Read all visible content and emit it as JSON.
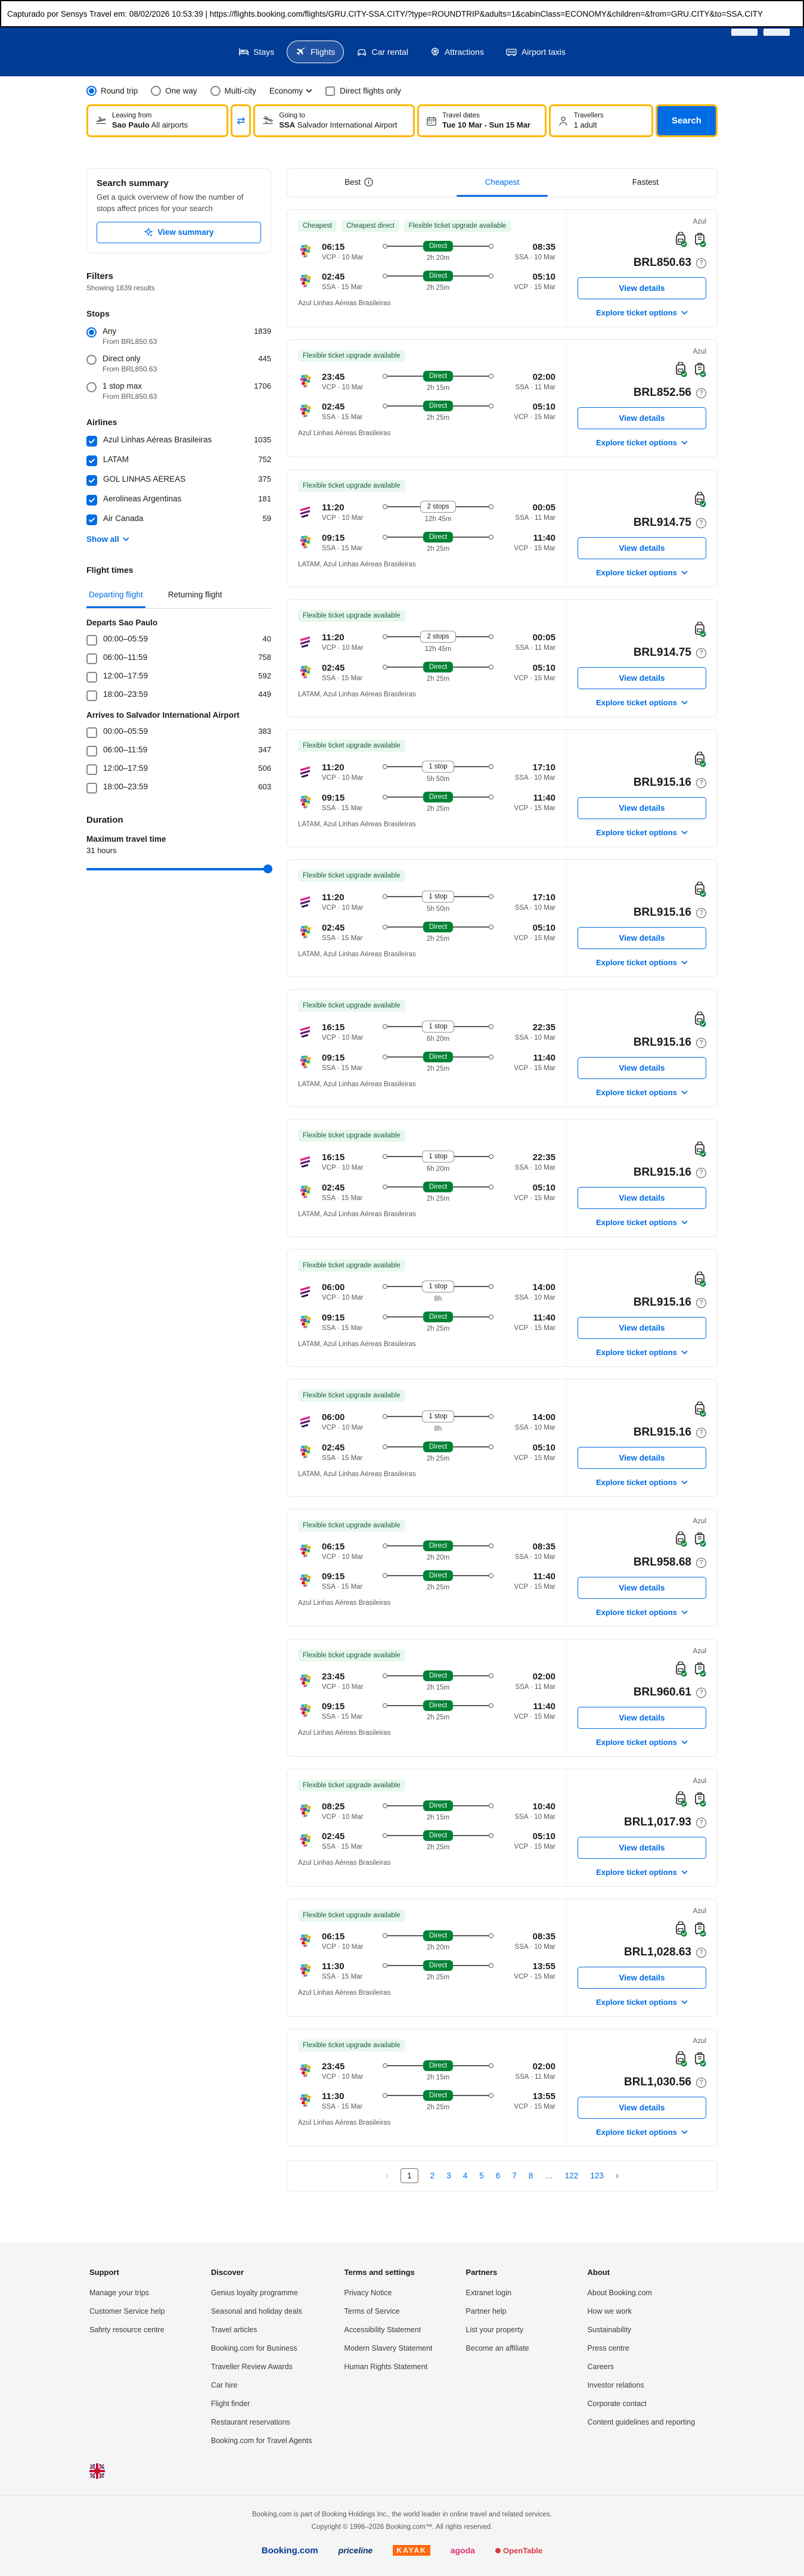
{
  "capture_bar": {
    "text": "Capturado por Sensys Travel em: 08/02/2026 10:53:39  |  https://flights.booking.com/flights/GRU.CITY-SSA.CITY/?type=ROUNDTRIP&adults=1&cabinClass=ECONOMY&children=&from=GRU.CITY&to=SSA.CITY"
  },
  "header": {
    "nav": [
      {
        "label": "Stays",
        "icon": "bed-icon",
        "active": false
      },
      {
        "label": "Flights",
        "icon": "plane-icon",
        "active": true
      },
      {
        "label": "Car rental",
        "icon": "car-icon",
        "active": false
      },
      {
        "label": "Attractions",
        "icon": "attractions-icon",
        "active": false
      },
      {
        "label": "Airport taxis",
        "icon": "taxi-icon",
        "active": false
      }
    ]
  },
  "search_controls": {
    "trip_types": [
      {
        "label": "Round trip",
        "selected": true
      },
      {
        "label": "One way",
        "selected": false
      },
      {
        "label": "Multi-city",
        "selected": false
      }
    ],
    "cabin_class": "Economy",
    "direct_only_label": "Direct flights only"
  },
  "search_form": {
    "leaving_label": "Leaving from",
    "leaving_bold": "Sao Paulo",
    "leaving_rest": " All airports",
    "going_label": "Going to",
    "going_bold": "SSA",
    "going_rest": " Salvador International Airport",
    "dates_label": "Travel dates",
    "dates_value": "Tue 10 Mar - Sun 15 Mar",
    "travellers_label": "Travellers",
    "travellers_value": "1 adult",
    "search_label": "Search"
  },
  "sidebar": {
    "summary": {
      "title": "Search summary",
      "description": "Get a quick overview of how the number of stops affect prices for your search",
      "button": "View summary"
    },
    "filters_title": "Filters",
    "showing": "Showing 1839 results",
    "stops": {
      "title": "Stops",
      "options": [
        {
          "label": "Any",
          "sub": "From BRL850.63",
          "count": "1839",
          "selected": true
        },
        {
          "label": "Direct only",
          "sub": "From BRL850.63",
          "count": "445",
          "selected": false
        },
        {
          "label": "1 stop max",
          "sub": "From BRL850.63",
          "count": "1706",
          "selected": false
        }
      ]
    },
    "airlines": {
      "title": "Airlines",
      "items": [
        {
          "label": "Azul Linhas Aéreas Brasileiras",
          "count": "1035",
          "checked": true
        },
        {
          "label": "LATAM",
          "count": "752",
          "checked": true
        },
        {
          "label": "GOL LINHAS AEREAS",
          "count": "375",
          "checked": true
        },
        {
          "label": "Aerolineas Argentinas",
          "count": "181",
          "checked": true
        },
        {
          "label": "Air Canada",
          "count": "59",
          "checked": true
        }
      ],
      "show_all": "Show all"
    },
    "flight_times": {
      "title": "Flight times",
      "tabs": [
        {
          "label": "Departing flight",
          "active": true
        },
        {
          "label": "Returning flight",
          "active": false
        }
      ],
      "groups": [
        {
          "title": "Departs Sao Paulo",
          "rows": [
            {
              "label": "00:00–05:59",
              "count": "40"
            },
            {
              "label": "06:00–11:59",
              "count": "758"
            },
            {
              "label": "12:00–17:59",
              "count": "592"
            },
            {
              "label": "18:00–23:59",
              "count": "449"
            }
          ]
        },
        {
          "title": "Arrives to Salvador International Airport",
          "rows": [
            {
              "label": "00:00–05:59",
              "count": "383"
            },
            {
              "label": "06:00–11:59",
              "count": "347"
            },
            {
              "label": "12:00–17:59",
              "count": "506"
            },
            {
              "label": "18:00–23:59",
              "count": "603"
            }
          ]
        }
      ]
    },
    "duration": {
      "title": "Duration",
      "label": "Maximum travel time",
      "value": "31 hours"
    }
  },
  "results": {
    "tabs": [
      {
        "label": "Best",
        "info": true,
        "active": false
      },
      {
        "label": "Cheapest",
        "info": false,
        "active": true
      },
      {
        "label": "Fastest",
        "info": false,
        "active": false
      }
    ],
    "card_labels": {
      "view_details": "View details",
      "explore": "Explore ticket options"
    },
    "cards": [
      {
        "badges": [
          "Cheapest",
          "Cheapest direct",
          "Flexible ticket upgrade available"
        ],
        "provider": "Azul",
        "bags": 2,
        "price": "BRL850.63",
        "carriers": "Azul Linhas Aéreas Brasileiras",
        "legs": [
          {
            "logo": "azul",
            "dep_time": "06:15",
            "dep_sta": "VCP · 10 Mar",
            "stop": "Direct",
            "dur": "2h 20m",
            "arr_time": "08:35",
            "arr_sta": "SSA · 10 Mar"
          },
          {
            "logo": "azul",
            "dep_time": "02:45",
            "dep_sta": "SSA · 15 Mar",
            "stop": "Direct",
            "dur": "2h 25m",
            "arr_time": "05:10",
            "arr_sta": "VCP · 15 Mar"
          }
        ]
      },
      {
        "badges": [
          "Flexible ticket upgrade available"
        ],
        "provider": "Azul",
        "bags": 2,
        "price": "BRL852.56",
        "carriers": "Azul Linhas Aéreas Brasileiras",
        "legs": [
          {
            "logo": "azul",
            "dep_time": "23:45",
            "dep_sta": "VCP · 10 Mar",
            "stop": "Direct",
            "dur": "2h 15m",
            "arr_time": "02:00",
            "arr_sta": "SSA · 11 Mar"
          },
          {
            "logo": "azul",
            "dep_time": "02:45",
            "dep_sta": "SSA · 15 Mar",
            "stop": "Direct",
            "dur": "2h 25m",
            "arr_time": "05:10",
            "arr_sta": "VCP · 15 Mar"
          }
        ]
      },
      {
        "badges": [
          "Flexible ticket upgrade available"
        ],
        "provider": "",
        "bags": 1,
        "price": "BRL914.75",
        "carriers": "LATAM, Azul Linhas Aéreas Brasileiras",
        "legs": [
          {
            "logo": "latam",
            "dep_time": "11:20",
            "dep_sta": "VCP · 10 Mar",
            "stop": "2 stops",
            "dur": "12h 45m",
            "arr_time": "00:05",
            "arr_sta": "SSA · 11 Mar"
          },
          {
            "logo": "azul",
            "dep_time": "09:15",
            "dep_sta": "SSA · 15 Mar",
            "stop": "Direct",
            "dur": "2h 25m",
            "arr_time": "11:40",
            "arr_sta": "VCP · 15 Mar"
          }
        ]
      },
      {
        "badges": [
          "Flexible ticket upgrade available"
        ],
        "provider": "",
        "bags": 1,
        "price": "BRL914.75",
        "carriers": "LATAM, Azul Linhas Aéreas Brasileiras",
        "legs": [
          {
            "logo": "latam",
            "dep_time": "11:20",
            "dep_sta": "VCP · 10 Mar",
            "stop": "2 stops",
            "dur": "12h 45m",
            "arr_time": "00:05",
            "arr_sta": "SSA · 11 Mar"
          },
          {
            "logo": "azul",
            "dep_time": "02:45",
            "dep_sta": "SSA · 15 Mar",
            "stop": "Direct",
            "dur": "2h 25m",
            "arr_time": "05:10",
            "arr_sta": "VCP · 15 Mar"
          }
        ]
      },
      {
        "badges": [
          "Flexible ticket upgrade available"
        ],
        "provider": "",
        "bags": 1,
        "price": "BRL915.16",
        "carriers": "LATAM, Azul Linhas Aéreas Brasileiras",
        "legs": [
          {
            "logo": "latam",
            "dep_time": "11:20",
            "dep_sta": "VCP · 10 Mar",
            "stop": "1 stop",
            "dur": "5h 50m",
            "arr_time": "17:10",
            "arr_sta": "SSA · 10 Mar"
          },
          {
            "logo": "azul",
            "dep_time": "09:15",
            "dep_sta": "SSA · 15 Mar",
            "stop": "Direct",
            "dur": "2h 25m",
            "arr_time": "11:40",
            "arr_sta": "VCP · 15 Mar"
          }
        ]
      },
      {
        "badges": [
          "Flexible ticket upgrade available"
        ],
        "provider": "",
        "bags": 1,
        "price": "BRL915.16",
        "carriers": "LATAM, Azul Linhas Aéreas Brasileiras",
        "legs": [
          {
            "logo": "latam",
            "dep_time": "11:20",
            "dep_sta": "VCP · 10 Mar",
            "stop": "1 stop",
            "dur": "5h 50m",
            "arr_time": "17:10",
            "arr_sta": "SSA · 10 Mar"
          },
          {
            "logo": "azul",
            "dep_time": "02:45",
            "dep_sta": "SSA · 15 Mar",
            "stop": "Direct",
            "dur": "2h 25m",
            "arr_time": "05:10",
            "arr_sta": "VCP · 15 Mar"
          }
        ]
      },
      {
        "badges": [
          "Flexible ticket upgrade available"
        ],
        "provider": "",
        "bags": 1,
        "price": "BRL915.16",
        "carriers": "LATAM, Azul Linhas Aéreas Brasileiras",
        "legs": [
          {
            "logo": "latam",
            "dep_time": "16:15",
            "dep_sta": "VCP · 10 Mar",
            "stop": "1 stop",
            "dur": "6h 20m",
            "arr_time": "22:35",
            "arr_sta": "SSA · 10 Mar"
          },
          {
            "logo": "azul",
            "dep_time": "09:15",
            "dep_sta": "SSA · 15 Mar",
            "stop": "Direct",
            "dur": "2h 25m",
            "arr_time": "11:40",
            "arr_sta": "VCP · 15 Mar"
          }
        ]
      },
      {
        "badges": [
          "Flexible ticket upgrade available"
        ],
        "provider": "",
        "bags": 1,
        "price": "BRL915.16",
        "carriers": "LATAM, Azul Linhas Aéreas Brasileiras",
        "legs": [
          {
            "logo": "latam",
            "dep_time": "16:15",
            "dep_sta": "VCP · 10 Mar",
            "stop": "1 stop",
            "dur": "6h 20m",
            "arr_time": "22:35",
            "arr_sta": "SSA · 10 Mar"
          },
          {
            "logo": "azul",
            "dep_time": "02:45",
            "dep_sta": "SSA · 15 Mar",
            "stop": "Direct",
            "dur": "2h 25m",
            "arr_time": "05:10",
            "arr_sta": "VCP · 15 Mar"
          }
        ]
      },
      {
        "badges": [
          "Flexible ticket upgrade available"
        ],
        "provider": "",
        "bags": 1,
        "price": "BRL915.16",
        "carriers": "LATAM, Azul Linhas Aéreas Brasileiras",
        "legs": [
          {
            "logo": "latam",
            "dep_time": "06:00",
            "dep_sta": "VCP · 10 Mar",
            "stop": "1 stop",
            "dur": "8h",
            "arr_time": "14:00",
            "arr_sta": "SSA · 10 Mar"
          },
          {
            "logo": "azul",
            "dep_time": "09:15",
            "dep_sta": "SSA · 15 Mar",
            "stop": "Direct",
            "dur": "2h 25m",
            "arr_time": "11:40",
            "arr_sta": "VCP · 15 Mar"
          }
        ]
      },
      {
        "badges": [
          "Flexible ticket upgrade available"
        ],
        "provider": "",
        "bags": 1,
        "price": "BRL915.16",
        "carriers": "LATAM, Azul Linhas Aéreas Brasileiras",
        "legs": [
          {
            "logo": "latam",
            "dep_time": "06:00",
            "dep_sta": "VCP · 10 Mar",
            "stop": "1 stop",
            "dur": "8h",
            "arr_time": "14:00",
            "arr_sta": "SSA · 10 Mar"
          },
          {
            "logo": "azul",
            "dep_time": "02:45",
            "dep_sta": "SSA · 15 Mar",
            "stop": "Direct",
            "dur": "2h 25m",
            "arr_time": "05:10",
            "arr_sta": "VCP · 15 Mar"
          }
        ]
      },
      {
        "badges": [
          "Flexible ticket upgrade available"
        ],
        "provider": "Azul",
        "bags": 2,
        "price": "BRL958.68",
        "carriers": "Azul Linhas Aéreas Brasileiras",
        "legs": [
          {
            "logo": "azul",
            "dep_time": "06:15",
            "dep_sta": "VCP · 10 Mar",
            "stop": "Direct",
            "dur": "2h 20m",
            "arr_time": "08:35",
            "arr_sta": "SSA · 10 Mar"
          },
          {
            "logo": "azul",
            "dep_time": "09:15",
            "dep_sta": "SSA · 15 Mar",
            "stop": "Direct",
            "dur": "2h 25m",
            "arr_time": "11:40",
            "arr_sta": "VCP · 15 Mar"
          }
        ]
      },
      {
        "badges": [
          "Flexible ticket upgrade available"
        ],
        "provider": "Azul",
        "bags": 2,
        "price": "BRL960.61",
        "carriers": "Azul Linhas Aéreas Brasileiras",
        "legs": [
          {
            "logo": "azul",
            "dep_time": "23:45",
            "dep_sta": "VCP · 10 Mar",
            "stop": "Direct",
            "dur": "2h 15m",
            "arr_time": "02:00",
            "arr_sta": "SSA · 11 Mar"
          },
          {
            "logo": "azul",
            "dep_time": "09:15",
            "dep_sta": "SSA · 15 Mar",
            "stop": "Direct",
            "dur": "2h 25m",
            "arr_time": "11:40",
            "arr_sta": "VCP · 15 Mar"
          }
        ]
      },
      {
        "badges": [
          "Flexible ticket upgrade available"
        ],
        "provider": "Azul",
        "bags": 2,
        "price": "BRL1,017.93",
        "carriers": "Azul Linhas Aéreas Brasileiras",
        "legs": [
          {
            "logo": "azul",
            "dep_time": "08:25",
            "dep_sta": "VCP · 10 Mar",
            "stop": "Direct",
            "dur": "2h 15m",
            "arr_time": "10:40",
            "arr_sta": "SSA · 10 Mar"
          },
          {
            "logo": "azul",
            "dep_time": "02:45",
            "dep_sta": "SSA · 15 Mar",
            "stop": "Direct",
            "dur": "2h 25m",
            "arr_time": "05:10",
            "arr_sta": "VCP · 15 Mar"
          }
        ]
      },
      {
        "badges": [
          "Flexible ticket upgrade available"
        ],
        "provider": "Azul",
        "bags": 2,
        "price": "BRL1,028.63",
        "carriers": "Azul Linhas Aéreas Brasileiras",
        "legs": [
          {
            "logo": "azul",
            "dep_time": "06:15",
            "dep_sta": "VCP · 10 Mar",
            "stop": "Direct",
            "dur": "2h 20m",
            "arr_time": "08:35",
            "arr_sta": "SSA · 10 Mar"
          },
          {
            "logo": "azul",
            "dep_time": "11:30",
            "dep_sta": "SSA · 15 Mar",
            "stop": "Direct",
            "dur": "2h 25m",
            "arr_time": "13:55",
            "arr_sta": "VCP · 15 Mar"
          }
        ]
      },
      {
        "badges": [
          "Flexible ticket upgrade available"
        ],
        "provider": "Azul",
        "bags": 2,
        "price": "BRL1,030.56",
        "carriers": "Azul Linhas Aéreas Brasileiras",
        "legs": [
          {
            "logo": "azul",
            "dep_time": "23:45",
            "dep_sta": "VCP · 10 Mar",
            "stop": "Direct",
            "dur": "2h 15m",
            "arr_time": "02:00",
            "arr_sta": "SSA · 11 Mar"
          },
          {
            "logo": "azul",
            "dep_time": "11:30",
            "dep_sta": "SSA · 15 Mar",
            "stop": "Direct",
            "dur": "2h 25m",
            "arr_time": "13:55",
            "arr_sta": "VCP · 15 Mar"
          }
        ]
      }
    ],
    "pagination": {
      "prev": "‹",
      "next": "›",
      "pages": [
        "1",
        "2",
        "3",
        "4",
        "5",
        "6",
        "7",
        "8",
        "…",
        "122",
        "123"
      ],
      "current": "1"
    }
  },
  "footer": {
    "columns": [
      {
        "title": "Support",
        "links": [
          "Manage your trips",
          "Customer Service help",
          "Safety resource centre"
        ]
      },
      {
        "title": "Discover",
        "links": [
          "Genius loyalty programme",
          "Seasonal and holiday deals",
          "Travel articles",
          "Booking.com for Business",
          "Traveller Review Awards",
          "Car hire",
          "Flight finder",
          "Restaurant reservations",
          "Booking.com for Travel Agents"
        ]
      },
      {
        "title": "Terms and settings",
        "links": [
          "Privacy Notice",
          "Terms of Service",
          "Accessibility Statement",
          "Modern Slavery Statement",
          "Human Rights Statement"
        ]
      },
      {
        "title": "Partners",
        "links": [
          "Extranet login",
          "Partner help",
          "List your property",
          "Become an affiliate"
        ]
      },
      {
        "title": "About",
        "links": [
          "About Booking.com",
          "How we work",
          "Sustainability",
          "Press centre",
          "Careers",
          "Investor relations",
          "Corporate contact",
          "Content guidelines and reporting"
        ]
      }
    ],
    "legal_line1": "Booking.com is part of Booking Holdings Inc., the world leader in online travel and related services.",
    "legal_line2": "Copyright © 1996–2026 Booking.com™. All rights reserved.",
    "brands": [
      "Booking.com",
      "priceline",
      "KAYAK",
      "agoda",
      "OpenTable"
    ]
  },
  "colors": {
    "header_blue": "#003b95",
    "accent_blue": "#006ce4",
    "search_yellow": "#ffb700",
    "direct_green": "#008234",
    "badge_bg": "#e7f8ed"
  }
}
